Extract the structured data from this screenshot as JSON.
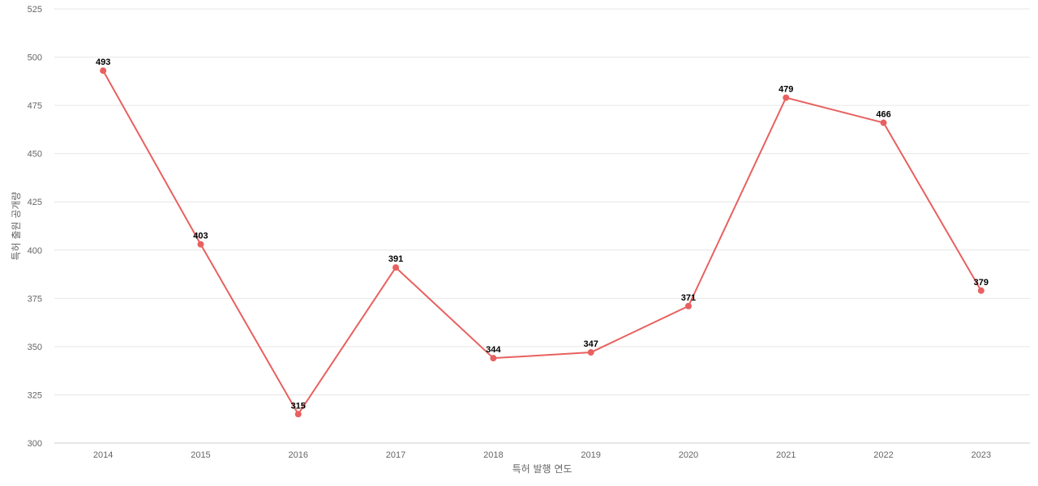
{
  "chart_data": {
    "type": "line",
    "title": "",
    "xlabel": "특허 발행 연도",
    "ylabel": "특허 출원 공개량",
    "categories": [
      "2014",
      "2015",
      "2016",
      "2017",
      "2018",
      "2019",
      "2020",
      "2021",
      "2022",
      "2023"
    ],
    "series": [
      {
        "values": [
          493,
          403,
          315,
          391,
          344,
          347,
          371,
          479,
          466,
          379
        ]
      }
    ],
    "ylim": [
      300,
      525
    ],
    "yticks": [
      300,
      325,
      350,
      375,
      400,
      425,
      450,
      475,
      500,
      525
    ],
    "grid": true,
    "legend": "none",
    "line_color": "#e8605f",
    "data_labels": true
  }
}
